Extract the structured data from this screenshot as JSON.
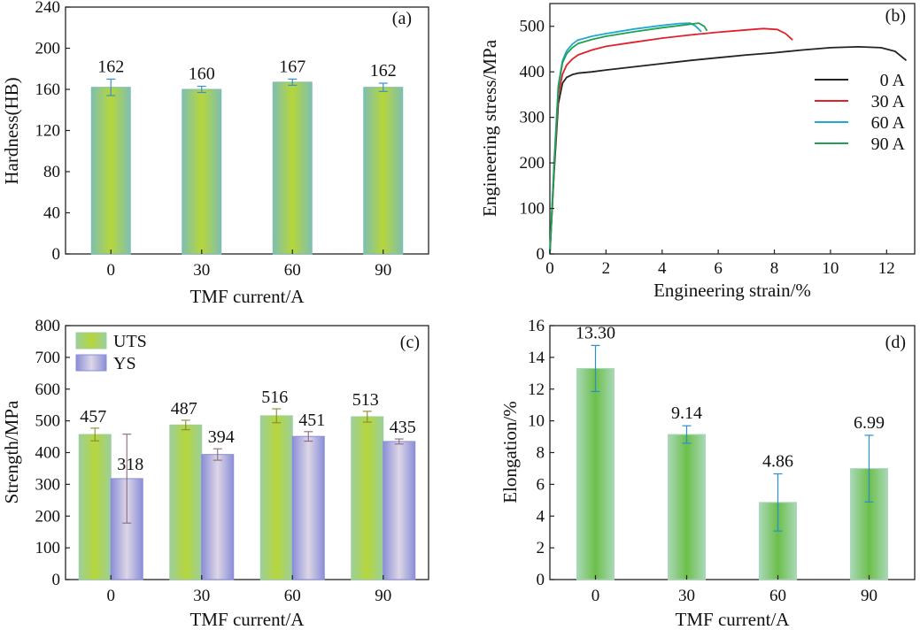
{
  "chart_data": [
    {
      "type": "bar",
      "panel_label": "(a)",
      "xlabel": "TMF current/A",
      "ylabel": "Hardness(HB)",
      "categories": [
        "0",
        "30",
        "60",
        "90"
      ],
      "values": [
        162,
        160,
        167,
        162
      ],
      "errors": [
        8,
        3,
        3,
        4
      ],
      "value_labels": [
        "162",
        "160",
        "167",
        "162"
      ],
      "ylim": [
        0,
        240
      ],
      "yticks": [
        "0",
        "40",
        "80",
        "120",
        "160",
        "200",
        "240"
      ],
      "colors": {
        "bar_edge": "#7fbfb0",
        "bar_center": "#b6d63a",
        "error": "#3a8fd0"
      }
    },
    {
      "type": "line",
      "panel_label": "(b)",
      "xlabel": "Engineering strain/%",
      "ylabel": "Engineering stress/MPa",
      "xlim": [
        0,
        13
      ],
      "ylim": [
        0,
        550
      ],
      "xticks": [
        "0",
        "2",
        "4",
        "6",
        "8",
        "10",
        "12"
      ],
      "yticks": [
        "0",
        "100",
        "200",
        "300",
        "400",
        "500"
      ],
      "legend_position": "right",
      "series": [
        {
          "name": "0 A",
          "color": "#222222",
          "x": [
            0,
            0.15,
            0.3,
            0.45,
            0.6,
            0.8,
            1.0,
            1.5,
            2,
            3,
            4,
            5,
            6,
            7,
            8,
            9,
            10,
            11,
            11.8,
            12.3,
            12.7
          ],
          "y": [
            0,
            180,
            330,
            375,
            388,
            394,
            397,
            400,
            404,
            411,
            418,
            425,
            431,
            437,
            442,
            448,
            453,
            455,
            453,
            445,
            425
          ]
        },
        {
          "name": "30 A",
          "color": "#e0202a",
          "x": [
            0,
            0.15,
            0.3,
            0.45,
            0.6,
            0.8,
            1.0,
            1.5,
            2,
            3,
            4,
            5,
            6,
            7,
            7.6,
            8.1,
            8.4,
            8.65
          ],
          "y": [
            0,
            190,
            350,
            395,
            415,
            428,
            437,
            448,
            456,
            465,
            474,
            481,
            487,
            492,
            495,
            493,
            484,
            470
          ]
        },
        {
          "name": "60 A",
          "color": "#20a8d0",
          "x": [
            0,
            0.15,
            0.3,
            0.45,
            0.6,
            0.8,
            1.0,
            1.5,
            2,
            3,
            4,
            4.6,
            5.0,
            5.2,
            5.4
          ],
          "y": [
            0,
            200,
            370,
            425,
            446,
            461,
            470,
            478,
            484,
            494,
            502,
            506,
            507,
            500,
            488
          ]
        },
        {
          "name": "90 A",
          "color": "#20a050",
          "x": [
            0,
            0.15,
            0.3,
            0.45,
            0.6,
            0.8,
            1.0,
            1.5,
            2,
            3,
            4,
            4.8,
            5.3,
            5.5,
            5.6
          ],
          "y": [
            0,
            195,
            365,
            420,
            440,
            453,
            462,
            471,
            478,
            488,
            497,
            503,
            507,
            500,
            490
          ]
        }
      ]
    },
    {
      "type": "bar",
      "panel_label": "(c)",
      "xlabel": "TMF current/A",
      "ylabel": "Strength/MPa",
      "categories": [
        "0",
        "30",
        "60",
        "90"
      ],
      "ylim": [
        0,
        800
      ],
      "yticks": [
        "0",
        "100",
        "200",
        "300",
        "400",
        "500",
        "600",
        "700",
        "800"
      ],
      "legend_position": "top-left",
      "series": [
        {
          "name": "UTS",
          "values": [
            457,
            487,
            516,
            513
          ],
          "errors": [
            20,
            15,
            22,
            17
          ],
          "value_labels": [
            "457",
            "487",
            "516",
            "513"
          ],
          "colors": {
            "edge": "#9ccf9c",
            "center": "#b6d63a",
            "error": "#8a8a30"
          }
        },
        {
          "name": "YS",
          "values": [
            318,
            394,
            451,
            435
          ],
          "errors": [
            140,
            18,
            15,
            8
          ],
          "value_labels": [
            "318",
            "394",
            "451",
            "435"
          ],
          "colors": {
            "edge": "#8a8ed8",
            "center": "#ddd6e6",
            "error": "#8a6a78"
          }
        }
      ]
    },
    {
      "type": "bar",
      "panel_label": "(d)",
      "xlabel": "TMF current/A",
      "ylabel": "Elongation/%",
      "categories": [
        "0",
        "30",
        "60",
        "90"
      ],
      "values": [
        13.3,
        9.14,
        4.86,
        6.99
      ],
      "errors": [
        1.45,
        0.55,
        1.8,
        2.1
      ],
      "value_labels": [
        "13.30",
        "9.14",
        "4.86",
        "6.99"
      ],
      "ylim": [
        0,
        16
      ],
      "yticks": [
        "0",
        "2",
        "4",
        "6",
        "8",
        "10",
        "12",
        "14",
        "16"
      ],
      "colors": {
        "bar_edge": "#a9d8b8",
        "bar_center": "#6cbf4a",
        "error": "#2a8fd0"
      }
    }
  ]
}
